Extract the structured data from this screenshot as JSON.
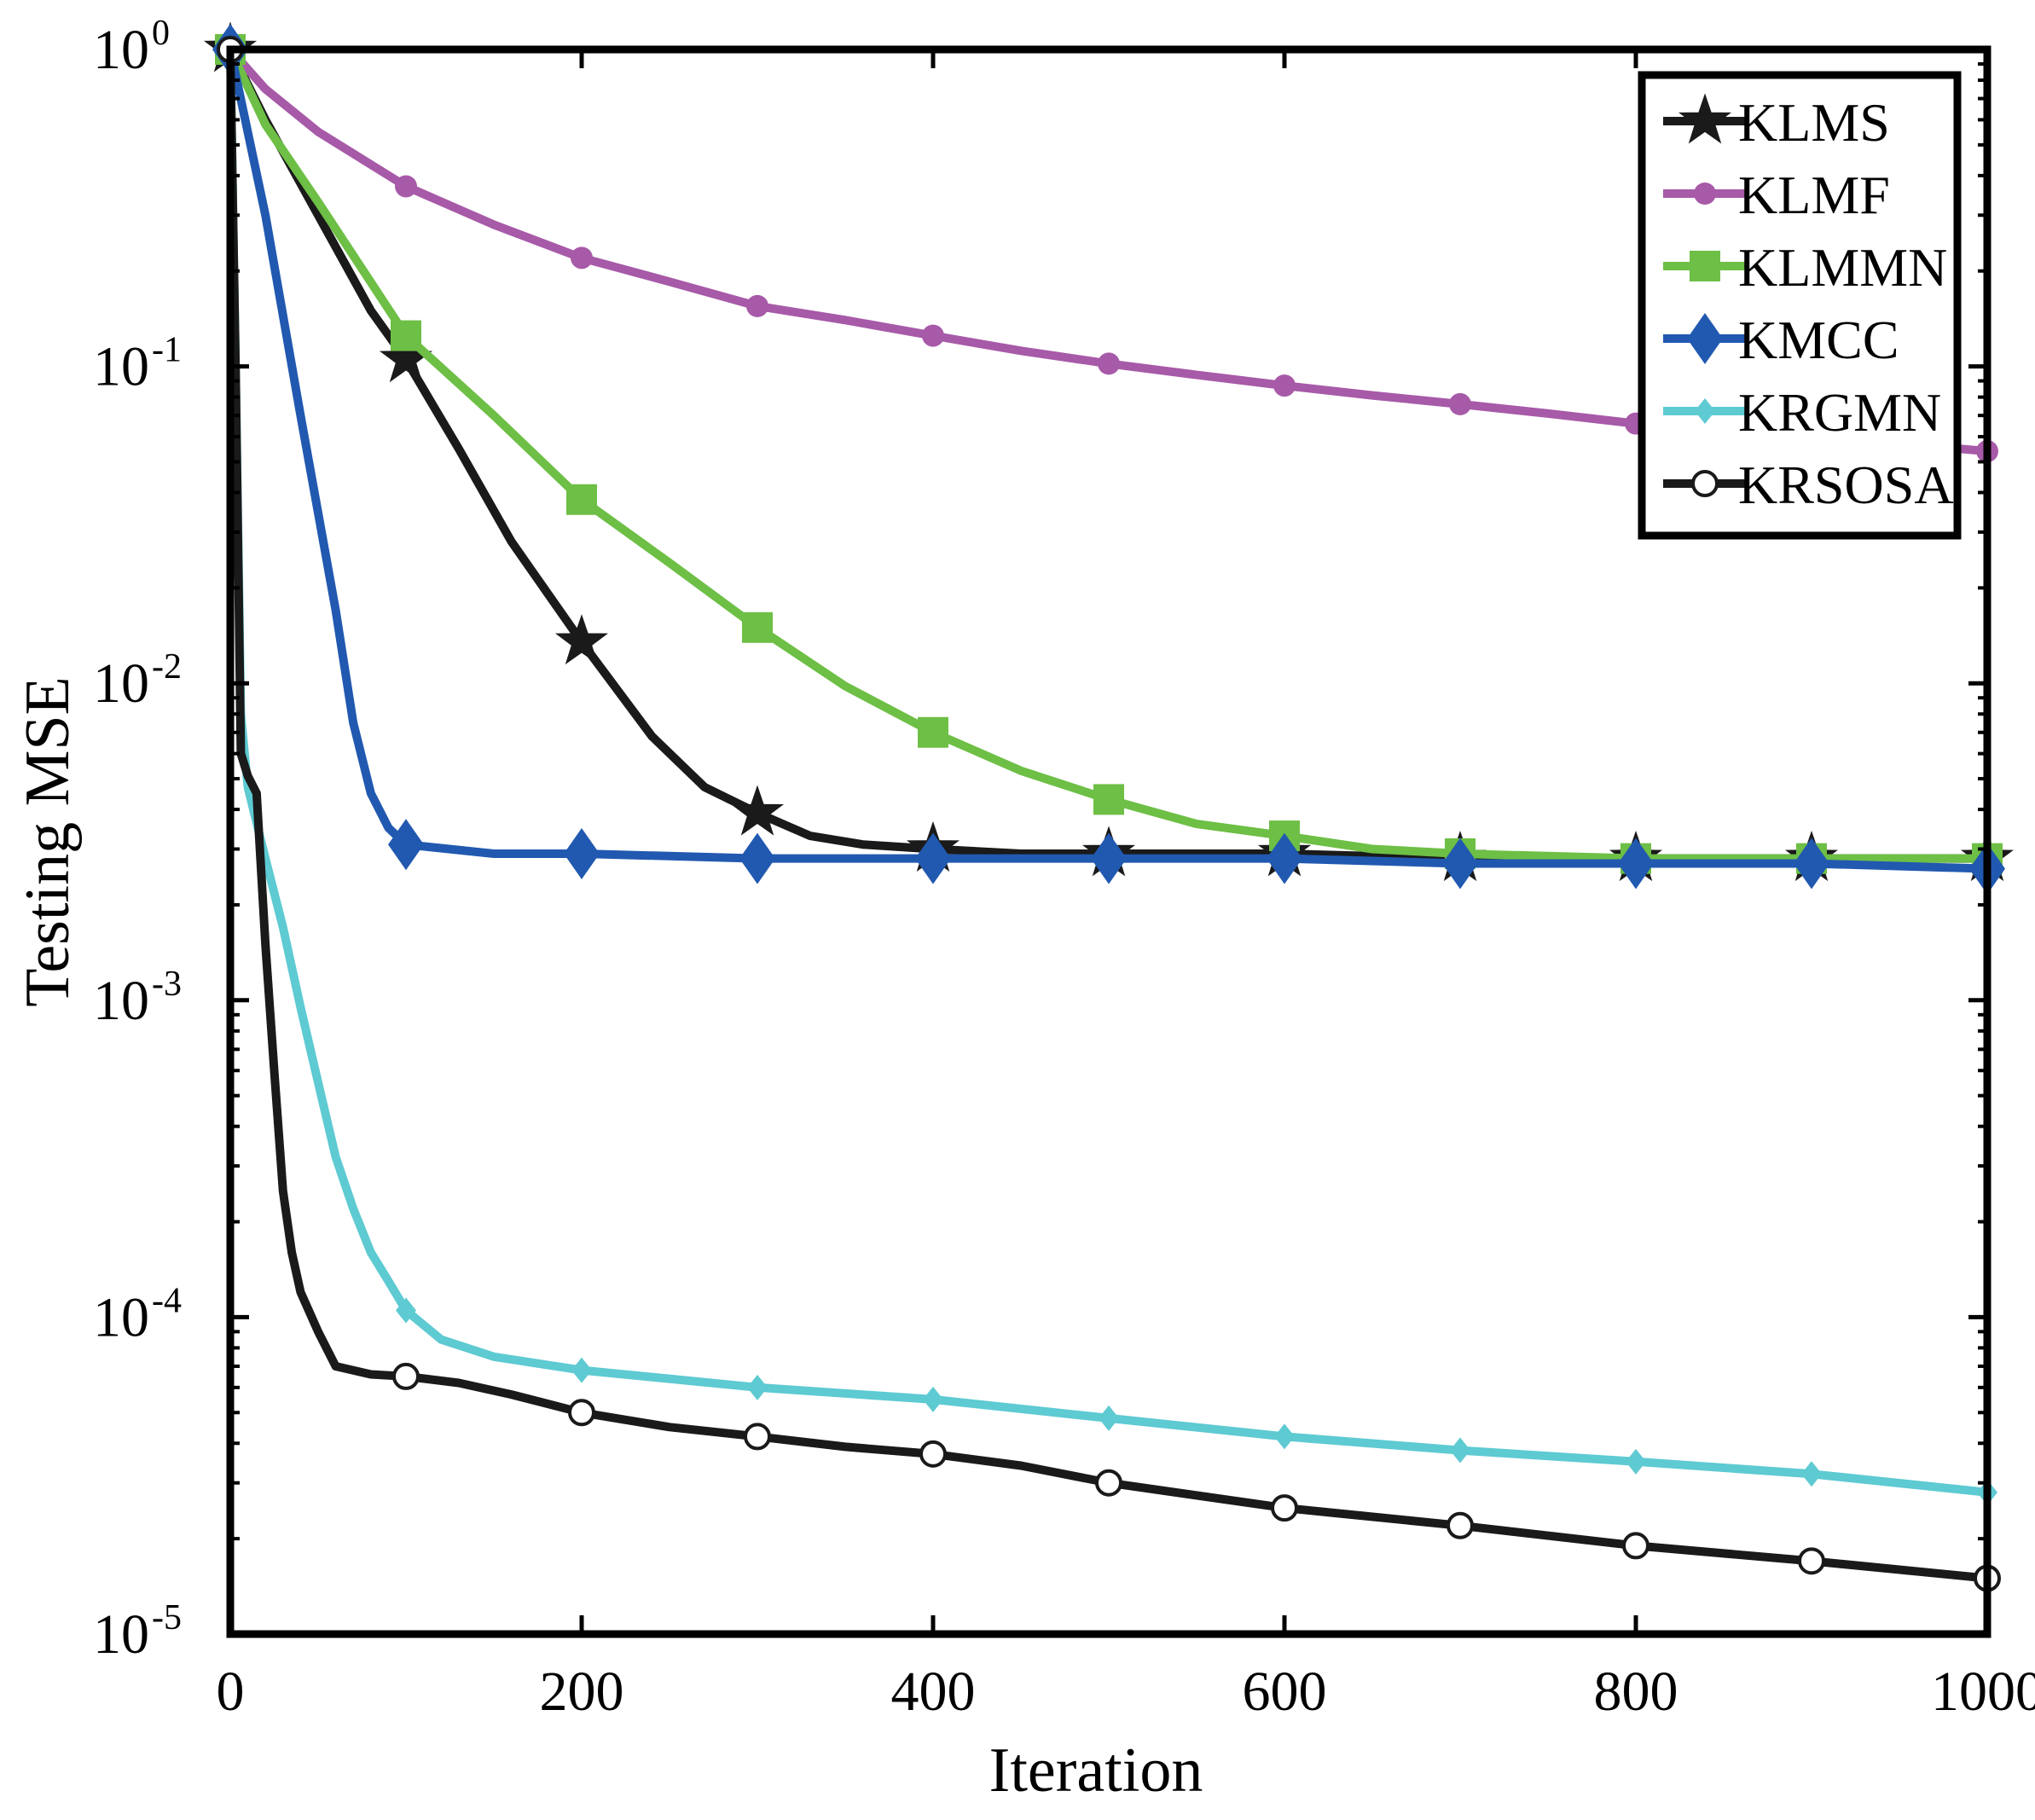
{
  "chart_data": {
    "type": "line",
    "title": "",
    "xlabel": "Iteration",
    "ylabel": "Testing MSE",
    "xlim": [
      0,
      1000
    ],
    "ylim": [
      1e-05,
      1
    ],
    "yscale": "log",
    "grid": false,
    "legend_position": "top-right",
    "x_ticks": [
      {
        "value": 0,
        "label": "0"
      },
      {
        "value": 200,
        "label": "200"
      },
      {
        "value": 400,
        "label": "400"
      },
      {
        "value": 600,
        "label": "600"
      },
      {
        "value": 800,
        "label": "800"
      },
      {
        "value": 1000,
        "label": "1000"
      }
    ],
    "y_ticks": [
      {
        "value": 1,
        "base": "10",
        "exp": "0"
      },
      {
        "value": 0.1,
        "base": "10",
        "exp": "-1"
      },
      {
        "value": 0.01,
        "base": "10",
        "exp": "-2"
      },
      {
        "value": 0.001,
        "base": "10",
        "exp": "-3"
      },
      {
        "value": 0.0001,
        "base": "10",
        "exp": "-4"
      },
      {
        "value": 1e-05,
        "base": "10",
        "exp": "-5"
      }
    ],
    "series": [
      {
        "name": "KLMS",
        "color": "#1a1a1a",
        "marker": "star",
        "x": [
          0,
          20,
          50,
          80,
          100,
          130,
          160,
          200,
          240,
          270,
          300,
          330,
          360,
          400,
          450,
          500,
          600,
          700,
          800,
          900,
          1000
        ],
        "y": [
          1.0,
          0.6,
          0.3,
          0.15,
          0.105,
          0.055,
          0.028,
          0.0135,
          0.0068,
          0.0047,
          0.0039,
          0.0033,
          0.0031,
          0.003,
          0.0029,
          0.0029,
          0.0029,
          0.0028,
          0.0028,
          0.0028,
          0.0028
        ]
      },
      {
        "name": "KLMF",
        "color": "#a75aa8",
        "marker": "dot",
        "x": [
          0,
          20,
          50,
          100,
          150,
          200,
          250,
          300,
          350,
          400,
          450,
          500,
          550,
          600,
          650,
          700,
          750,
          800,
          850,
          900,
          950,
          1000
        ],
        "y": [
          1.0,
          0.75,
          0.55,
          0.37,
          0.28,
          0.22,
          0.185,
          0.155,
          0.14,
          0.125,
          0.112,
          0.102,
          0.094,
          0.087,
          0.081,
          0.076,
          0.071,
          0.066,
          0.063,
          0.06,
          0.057,
          0.054
        ]
      },
      {
        "name": "KLMMN",
        "color": "#6dbf45",
        "marker": "square",
        "x": [
          0,
          20,
          50,
          100,
          150,
          200,
          250,
          300,
          350,
          400,
          450,
          500,
          550,
          600,
          650,
          700,
          800,
          900,
          1000
        ],
        "y": [
          1.0,
          0.58,
          0.33,
          0.125,
          0.07,
          0.038,
          0.024,
          0.015,
          0.0098,
          0.007,
          0.0053,
          0.0043,
          0.0036,
          0.0033,
          0.003,
          0.0029,
          0.0028,
          0.0028,
          0.0028
        ]
      },
      {
        "name": "KMCC",
        "color": "#2159b0",
        "marker": "diamond",
        "x": [
          0,
          20,
          40,
          60,
          70,
          80,
          90,
          100,
          150,
          200,
          300,
          400,
          500,
          600,
          700,
          800,
          900,
          1000
        ],
        "y": [
          1.0,
          0.3,
          0.07,
          0.017,
          0.0075,
          0.0045,
          0.0035,
          0.0031,
          0.0029,
          0.0029,
          0.0028,
          0.0028,
          0.0028,
          0.0028,
          0.0027,
          0.0027,
          0.0027,
          0.0026
        ]
      },
      {
        "name": "KRGMN",
        "color": "#5ecad2",
        "marker": "small-diamond",
        "x": [
          0,
          3,
          6,
          10,
          20,
          30,
          40,
          50,
          60,
          70,
          80,
          90,
          100,
          120,
          150,
          200,
          300,
          400,
          500,
          600,
          700,
          800,
          900,
          1000
        ],
        "y": [
          1.0,
          0.1,
          0.008,
          0.0047,
          0.0028,
          0.0017,
          0.00095,
          0.00055,
          0.00032,
          0.00022,
          0.00016,
          0.00013,
          0.000105,
          8.5e-05,
          7.5e-05,
          6.8e-05,
          6e-05,
          5.5e-05,
          4.8e-05,
          4.2e-05,
          3.8e-05,
          3.5e-05,
          3.2e-05,
          2.8e-05
        ]
      },
      {
        "name": "KRSOSA",
        "color": "#1a1a1a",
        "marker": "circle",
        "x": [
          0,
          3,
          6,
          10,
          15,
          20,
          25,
          30,
          35,
          40,
          50,
          60,
          80,
          100,
          130,
          160,
          200,
          250,
          300,
          350,
          400,
          450,
          500,
          600,
          700,
          800,
          900,
          1000
        ],
        "y": [
          1.0,
          0.1,
          0.006,
          0.0051,
          0.0045,
          0.0015,
          0.0006,
          0.00025,
          0.00016,
          0.00012,
          9e-05,
          7e-05,
          6.6e-05,
          6.5e-05,
          6.2e-05,
          5.7e-05,
          5e-05,
          4.5e-05,
          4.2e-05,
          3.9e-05,
          3.7e-05,
          3.4e-05,
          3e-05,
          2.5e-05,
          2.2e-05,
          1.9e-05,
          1.7e-05,
          1.5e-05
        ]
      }
    ]
  }
}
